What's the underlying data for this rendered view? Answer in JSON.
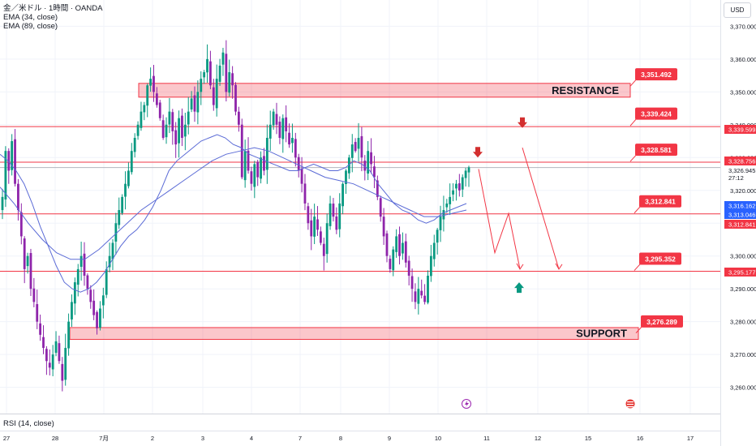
{
  "header": {
    "symbol_line": "金／米ドル · 1時間 · OANDA",
    "ema1": "EMA (34, close)",
    "ema2": "EMA (89, close)",
    "currency_button": "USD",
    "rsi_label": "RSI (14, close)"
  },
  "chart_data": {
    "type": "candlestick",
    "ylim": [
      3252,
      3378
    ],
    "y_ticks": [
      3260,
      3270,
      3280,
      3290,
      3300,
      3310,
      3320,
      3330,
      3340,
      3350,
      3360,
      3370
    ],
    "y_tick_labels": [
      "3,260.000",
      "3,270.000",
      "3,280.000",
      "3,290.000",
      "3,300.000",
      "3,310.000",
      "3,320.000",
      "3,330.000",
      "3,340.000",
      "3,350.000",
      "3,360.000",
      "3,370.000"
    ],
    "x_tick_labels": [
      "27",
      "28",
      "7月",
      "2",
      "3",
      "4",
      "7",
      "8",
      "9",
      "10",
      "11",
      "12",
      "15",
      "16",
      "17"
    ],
    "current_price": "3,326.945",
    "countdown": "27:12",
    "price_tags": [
      {
        "value": "3,339.599",
        "color": "#f23645"
      },
      {
        "value": "3,328.756",
        "color": "#f23645"
      },
      {
        "value": "3,316.162",
        "color": "#2962ff"
      },
      {
        "value": "3,313.046",
        "color": "#2962ff"
      },
      {
        "value": "3,312.841",
        "color": "#f23645"
      },
      {
        "value": "3,295.177",
        "color": "#f23645"
      }
    ],
    "levels": [
      {
        "price": 3351.492,
        "label": "3,351.492"
      },
      {
        "price": 3339.424,
        "label": "3,339.424"
      },
      {
        "price": 3328.581,
        "label": "3,328.581"
      },
      {
        "price": 3312.841,
        "label": "3,312.841"
      },
      {
        "price": 3295.352,
        "label": "3,295.352"
      },
      {
        "price": 3276.289,
        "label": "3,276.289"
      }
    ],
    "zones": [
      {
        "label": "RESISTANCE",
        "top": 3352.6,
        "bottom": 3348.4
      },
      {
        "label": "SUPPORT",
        "top": 3278.2,
        "bottom": 3274.6
      }
    ],
    "candles_close": [
      3318,
      3332,
      3326,
      3335,
      3322,
      3314,
      3306,
      3296,
      3300,
      3290,
      3286,
      3280,
      3276,
      3272,
      3268,
      3266,
      3270,
      3274,
      3268,
      3262,
      3272,
      3280,
      3286,
      3292,
      3296,
      3300,
      3294,
      3290,
      3286,
      3282,
      3278,
      3284,
      3288,
      3296,
      3300,
      3304,
      3310,
      3314,
      3318,
      3322,
      3326,
      3332,
      3336,
      3340,
      3344,
      3346,
      3352,
      3354,
      3350,
      3346,
      3342,
      3336,
      3340,
      3344,
      3338,
      3334,
      3342,
      3336,
      3340,
      3344,
      3348,
      3344,
      3350,
      3354,
      3356,
      3360,
      3352,
      3346,
      3354,
      3358,
      3362,
      3350,
      3356,
      3352,
      3344,
      3340,
      3324,
      3332,
      3326,
      3322,
      3328,
      3324,
      3330,
      3326,
      3336,
      3340,
      3344,
      3340,
      3336,
      3342,
      3338,
      3334,
      3336,
      3330,
      3326,
      3322,
      3316,
      3310,
      3306,
      3312,
      3308,
      3304,
      3300,
      3310,
      3316,
      3312,
      3308,
      3316,
      3322,
      3326,
      3330,
      3334,
      3332,
      3336,
      3330,
      3326,
      3332,
      3328,
      3324,
      3318,
      3312,
      3306,
      3300,
      3296,
      3302,
      3306,
      3300,
      3304,
      3298,
      3294,
      3290,
      3286,
      3290,
      3288,
      3286,
      3294,
      3300,
      3304,
      3308,
      3312,
      3314,
      3316,
      3318,
      3320,
      3322,
      3320,
      3324,
      3326,
      3327
    ],
    "ema34": [
      3331,
      3329,
      3326,
      3322,
      3316,
      3309,
      3303,
      3297,
      3292,
      3290,
      3289,
      3290,
      3292,
      3295,
      3299,
      3303,
      3306,
      3308,
      3311,
      3315,
      3320,
      3326,
      3329,
      3331,
      3333,
      3335,
      3336,
      3337,
      3336,
      3334,
      3333,
      3331,
      3330,
      3329,
      3328,
      3327,
      3326,
      3326,
      3327,
      3328,
      3327,
      3326,
      3326,
      3327,
      3329,
      3328,
      3326,
      3322,
      3319,
      3316,
      3314,
      3313,
      3311,
      3310,
      3311,
      3313,
      3314,
      3315,
      3316
    ],
    "ema89": [
      3321,
      3316,
      3310,
      3305,
      3301,
      3299,
      3299,
      3302,
      3306,
      3310,
      3314,
      3317,
      3320,
      3323,
      3326,
      3329,
      3331,
      3332,
      3333,
      3332,
      3330,
      3328,
      3326,
      3324,
      3323,
      3322,
      3320,
      3318,
      3316,
      3314,
      3312,
      3312,
      3313,
      3314
    ],
    "arrows": [
      {
        "direction": "down",
        "color": "#d32f2f"
      },
      {
        "direction": "down",
        "color": "#d32f2f"
      },
      {
        "direction": "up",
        "color": "#089981"
      }
    ]
  }
}
